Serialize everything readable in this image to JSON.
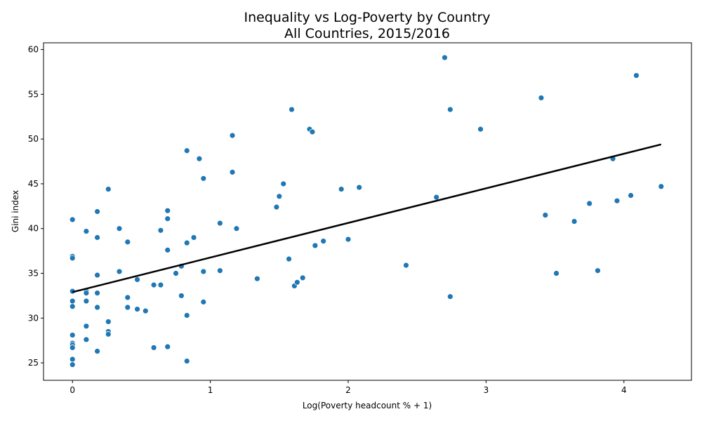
{
  "colors": {
    "points": "#1f77b4",
    "trend": "#000000",
    "axes": "#000000",
    "background": "#ffffff"
  },
  "chart_data": {
    "type": "scatter",
    "title": "Inequality vs Log-Poverty by Country",
    "subtitle": "All Countries, 2015/2016",
    "xlabel": "Log(Poverty headcount % + 1)",
    "ylabel": "Gini index",
    "xlim": [
      -0.21,
      4.49
    ],
    "ylim": [
      23.05,
      60.75
    ],
    "xticks": [
      0,
      1,
      2,
      3,
      4
    ],
    "yticks": [
      25,
      30,
      35,
      40,
      45,
      50,
      55,
      60
    ],
    "xtick_labels": [
      "0",
      "1",
      "2",
      "3",
      "4"
    ],
    "ytick_labels": [
      "25",
      "30",
      "35",
      "40",
      "45",
      "50",
      "55",
      "60"
    ],
    "grid": false,
    "legend": "none",
    "trend_line": {
      "x": [
        0,
        4.27
      ],
      "y": [
        32.9,
        49.4
      ]
    },
    "points": [
      {
        "x": 0,
        "y": 41.0
      },
      {
        "x": 0,
        "y": 36.9
      },
      {
        "x": 0,
        "y": 36.7
      },
      {
        "x": 0,
        "y": 33.0
      },
      {
        "x": 0,
        "y": 31.9
      },
      {
        "x": 0,
        "y": 31.3
      },
      {
        "x": 0,
        "y": 28.1
      },
      {
        "x": 0,
        "y": 27.2
      },
      {
        "x": 0,
        "y": 27.0
      },
      {
        "x": 0,
        "y": 26.7
      },
      {
        "x": 0,
        "y": 25.4
      },
      {
        "x": 0,
        "y": 24.8
      },
      {
        "x": 0.1,
        "y": 39.7
      },
      {
        "x": 0.1,
        "y": 33.0
      },
      {
        "x": 0.1,
        "y": 32.8
      },
      {
        "x": 0.1,
        "y": 31.9
      },
      {
        "x": 0.1,
        "y": 29.1
      },
      {
        "x": 0.1,
        "y": 27.6
      },
      {
        "x": 0.18,
        "y": 41.9
      },
      {
        "x": 0.18,
        "y": 39.0
      },
      {
        "x": 0.18,
        "y": 34.8
      },
      {
        "x": 0.18,
        "y": 32.8
      },
      {
        "x": 0.18,
        "y": 31.2
      },
      {
        "x": 0.18,
        "y": 26.3
      },
      {
        "x": 0.26,
        "y": 44.4
      },
      {
        "x": 0.26,
        "y": 29.6
      },
      {
        "x": 0.26,
        "y": 28.5
      },
      {
        "x": 0.26,
        "y": 28.2
      },
      {
        "x": 0.34,
        "y": 40.0
      },
      {
        "x": 0.34,
        "y": 35.2
      },
      {
        "x": 0.4,
        "y": 38.5
      },
      {
        "x": 0.4,
        "y": 32.3
      },
      {
        "x": 0.4,
        "y": 31.2
      },
      {
        "x": 0.47,
        "y": 34.3
      },
      {
        "x": 0.47,
        "y": 31.0
      },
      {
        "x": 0.53,
        "y": 30.8
      },
      {
        "x": 0.59,
        "y": 33.7
      },
      {
        "x": 0.59,
        "y": 26.7
      },
      {
        "x": 0.64,
        "y": 39.8
      },
      {
        "x": 0.64,
        "y": 33.7
      },
      {
        "x": 0.69,
        "y": 42.0
      },
      {
        "x": 0.69,
        "y": 41.1
      },
      {
        "x": 0.69,
        "y": 37.6
      },
      {
        "x": 0.69,
        "y": 26.8
      },
      {
        "x": 0.75,
        "y": 35.0
      },
      {
        "x": 0.79,
        "y": 35.8
      },
      {
        "x": 0.79,
        "y": 32.5
      },
      {
        "x": 0.83,
        "y": 48.7
      },
      {
        "x": 0.83,
        "y": 38.4
      },
      {
        "x": 0.83,
        "y": 30.3
      },
      {
        "x": 0.83,
        "y": 25.2
      },
      {
        "x": 0.88,
        "y": 39.0
      },
      {
        "x": 0.92,
        "y": 47.8
      },
      {
        "x": 0.95,
        "y": 45.6
      },
      {
        "x": 0.95,
        "y": 35.2
      },
      {
        "x": 0.95,
        "y": 31.8
      },
      {
        "x": 1.07,
        "y": 40.6
      },
      {
        "x": 1.07,
        "y": 35.3
      },
      {
        "x": 1.16,
        "y": 50.4
      },
      {
        "x": 1.16,
        "y": 46.3
      },
      {
        "x": 1.19,
        "y": 40.0
      },
      {
        "x": 1.34,
        "y": 34.4
      },
      {
        "x": 1.48,
        "y": 42.4
      },
      {
        "x": 1.5,
        "y": 43.6
      },
      {
        "x": 1.53,
        "y": 45.0
      },
      {
        "x": 1.57,
        "y": 36.6
      },
      {
        "x": 1.59,
        "y": 53.3
      },
      {
        "x": 1.61,
        "y": 33.6
      },
      {
        "x": 1.63,
        "y": 34.0
      },
      {
        "x": 1.67,
        "y": 34.5
      },
      {
        "x": 1.72,
        "y": 51.1
      },
      {
        "x": 1.74,
        "y": 50.8
      },
      {
        "x": 1.76,
        "y": 38.1
      },
      {
        "x": 1.82,
        "y": 38.6
      },
      {
        "x": 1.95,
        "y": 44.4
      },
      {
        "x": 2.0,
        "y": 38.8
      },
      {
        "x": 2.08,
        "y": 44.6
      },
      {
        "x": 2.42,
        "y": 35.9
      },
      {
        "x": 2.64,
        "y": 43.5
      },
      {
        "x": 2.7,
        "y": 59.1
      },
      {
        "x": 2.74,
        "y": 53.3
      },
      {
        "x": 2.74,
        "y": 32.4
      },
      {
        "x": 2.96,
        "y": 51.1
      },
      {
        "x": 3.4,
        "y": 54.6
      },
      {
        "x": 3.43,
        "y": 41.5
      },
      {
        "x": 3.51,
        "y": 35.0
      },
      {
        "x": 3.64,
        "y": 40.8
      },
      {
        "x": 3.75,
        "y": 42.8
      },
      {
        "x": 3.81,
        "y": 35.3
      },
      {
        "x": 3.92,
        "y": 47.8
      },
      {
        "x": 3.95,
        "y": 43.1
      },
      {
        "x": 4.05,
        "y": 43.7
      },
      {
        "x": 4.09,
        "y": 57.1
      },
      {
        "x": 4.27,
        "y": 44.7
      }
    ]
  }
}
